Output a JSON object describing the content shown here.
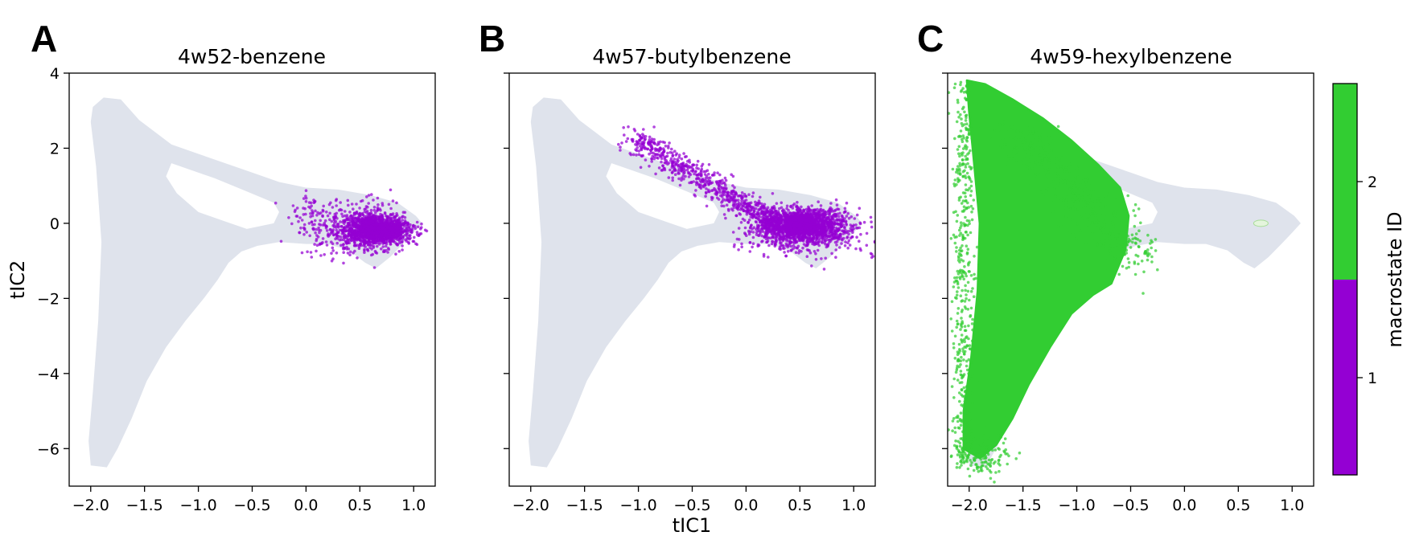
{
  "chart_data": [
    {
      "type": "scatter",
      "panel_label": "A",
      "title": "4w52-benzene",
      "xlabel": "",
      "ylabel": "tIC2",
      "xlim": [
        -2.2,
        1.2
      ],
      "ylim": [
        -7,
        4
      ],
      "xticks": [
        "−2.0",
        "−1.5",
        "−1.0",
        "−0.5",
        "0.0",
        "0.5",
        "1.0"
      ],
      "yticks": [
        "−6",
        "−4",
        "−2",
        "0",
        "2",
        "4"
      ],
      "grid": false,
      "background_density": "grey filled region covering tIC1 − 2.0..1.0, tIC2 −6.5..3.3",
      "macrostate": 1,
      "color": "#9400d3",
      "cluster": {
        "x_range": [
          -0.2,
          1.05
        ],
        "y_range": [
          -1.4,
          0.9
        ],
        "core_center": [
          0.65,
          -0.2
        ]
      }
    },
    {
      "type": "scatter",
      "panel_label": "B",
      "title": "4w57-butylbenzene",
      "xlabel": "tIC1",
      "ylabel": "",
      "xlim": [
        -2.2,
        1.2
      ],
      "ylim": [
        -7,
        4
      ],
      "xticks": [
        "−2.0",
        "−1.5",
        "−1.0",
        "−0.5",
        "0.0",
        "0.5",
        "1.0"
      ],
      "yticks": [],
      "grid": false,
      "macrostate": 1,
      "color": "#9400d3",
      "cluster": {
        "x_range": [
          -1.1,
          1.1
        ],
        "y_range": [
          -1.3,
          2.7
        ],
        "core_center": [
          0.5,
          -0.1
        ]
      }
    },
    {
      "type": "scatter",
      "panel_label": "C",
      "title": "4w59-hexylbenzene",
      "xlabel": "",
      "ylabel": "",
      "xlim": [
        -2.2,
        1.2
      ],
      "ylim": [
        -7,
        4
      ],
      "xticks": [
        "−2.0",
        "−1.5",
        "−1.0",
        "−0.5",
        "0.0",
        "0.5",
        "1.0"
      ],
      "yticks": [],
      "grid": false,
      "macrostate": 2,
      "color": "#32cd32",
      "cluster": {
        "x_range": [
          -2.1,
          -0.2
        ],
        "y_range": [
          -6.6,
          3.9
        ]
      }
    }
  ],
  "colorbar": {
    "label": "macrostate ID",
    "ticks": [
      "1",
      "2"
    ],
    "colors": [
      "#9400d3",
      "#32cd32"
    ]
  },
  "colors": {
    "background_density": "#dfe3ec",
    "macrostate_1": "#9400d3",
    "macrostate_2": "#32cd32"
  }
}
